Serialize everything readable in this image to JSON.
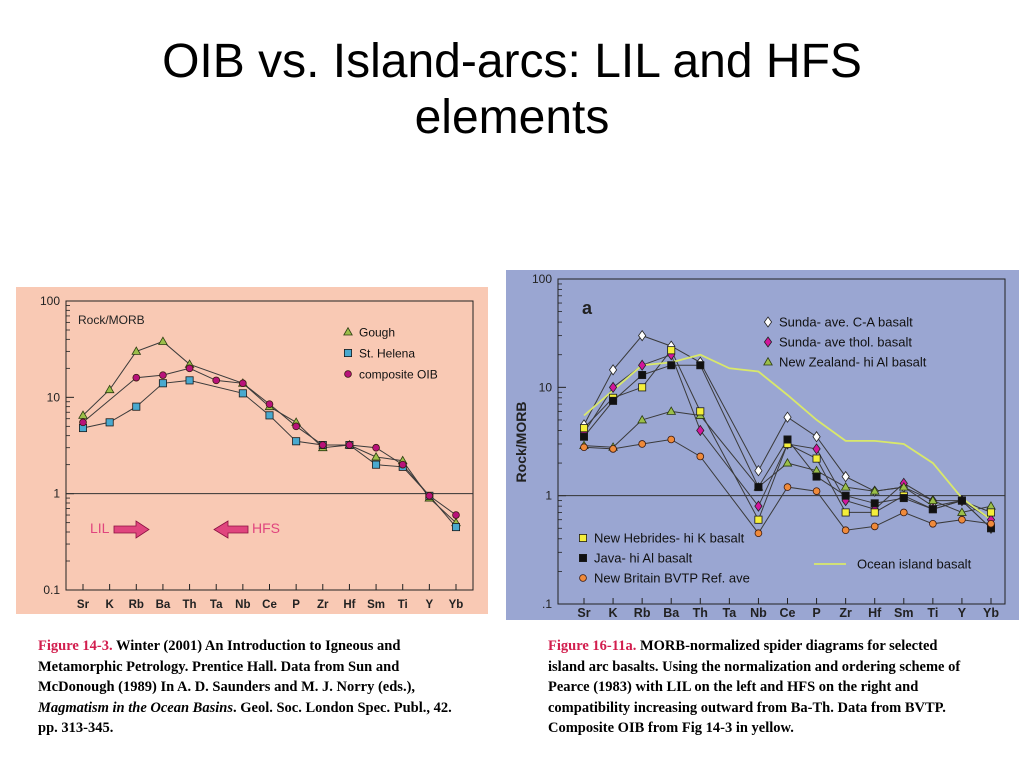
{
  "slide": {
    "title_line1": "OIB vs. Island-arcs: LIL and HFS",
    "title_line2": "elements"
  },
  "colors": {
    "left_bg": "#f9c9b4",
    "right_bg": "#9aa6d2",
    "caption_label": "#d21e4e",
    "gough": "#9bbf4a",
    "st_helena": "#49a9cf",
    "composite_oib": "#b8127a",
    "sunda_ca": "#ffffff",
    "sunda_thol": "#d2169c",
    "new_zealand": "#9bbf4a",
    "new_hebrides": "#f4ee3a",
    "java": "#111111",
    "new_britain": "#f08a3a",
    "ocean_island_line": "#d9e86a",
    "lil_arrow": "#e0457e"
  },
  "captions": {
    "left": {
      "label": "Figure 14-3.",
      "text_a": " Winter (2001) An Introduction to Igneous and Metamorphic Petrology. Prentice Hall. Data from Sun and McDonough (1989) In A. D. Saunders and M. J. Norry (eds.), ",
      "italic": "Magmatism in the Ocean Basins",
      "text_b": ". Geol. Soc. London Spec. Publ., 42. pp. 313-345."
    },
    "right": {
      "label": "Figure 16-11a.",
      "text": " MORB-normalized spider diagrams for selected island arc basalts. Using the normalization and ordering scheme of Pearce (1983) with LIL on the left and HFS on the right and compatibility increasing outward from Ba-Th. Data from BVTP. Composite OIB from Fig 14-3 in yellow."
    }
  },
  "chart_data": [
    {
      "type": "line",
      "ylabel": "Rock/MORB",
      "yscale": "log",
      "ylim": [
        0.1,
        100
      ],
      "y_ticks": [
        "100",
        "10",
        "1",
        "0.1"
      ],
      "categories": [
        "Sr",
        "K",
        "Rb",
        "Ba",
        "Th",
        "Ta",
        "Nb",
        "Ce",
        "P",
        "Zr",
        "Hf",
        "Sm",
        "Ti",
        "Y",
        "Yb"
      ],
      "reference_line": 1,
      "annotations": {
        "lil": "LIL",
        "hfs": "HFS"
      },
      "series": [
        {
          "name": "Gough",
          "marker": "triangle",
          "color_key": "gough",
          "values": [
            6.5,
            12,
            30,
            38,
            22,
            null,
            14,
            8,
            5.5,
            3,
            3.2,
            2.4,
            2.2,
            0.9,
            0.5
          ]
        },
        {
          "name": "St. Helena",
          "marker": "square",
          "color_key": "st_helena",
          "values": [
            4.8,
            5.5,
            8,
            14,
            15,
            null,
            11,
            6.5,
            3.5,
            3.2,
            3.2,
            2,
            1.9,
            0.95,
            0.45
          ]
        },
        {
          "name": "composite OIB",
          "marker": "circle",
          "color_key": "composite_oib",
          "values": [
            5.5,
            null,
            16,
            17,
            20,
            15,
            14,
            8.5,
            5,
            3.2,
            3.2,
            3,
            2,
            0.95,
            0.6
          ]
        }
      ]
    },
    {
      "type": "line",
      "panel_label": "a",
      "ylabel": "Rock/MORB",
      "yscale": "log",
      "ylim": [
        0.1,
        100
      ],
      "y_ticks": [
        "100",
        "10",
        "1",
        ".1"
      ],
      "categories": [
        "Sr",
        "K",
        "Rb",
        "Ba",
        "Th",
        "Ta",
        "Nb",
        "Ce",
        "P",
        "Zr",
        "Hf",
        "Sm",
        "Ti",
        "Y",
        "Yb"
      ],
      "reference_line": 1,
      "series": [
        {
          "name": "Sunda- ave. C-A basalt",
          "marker": "diamond",
          "color_key": "sunda_ca",
          "values": [
            4.5,
            14.5,
            30,
            24,
            17,
            null,
            1.7,
            5.3,
            3.5,
            1.5,
            1.1,
            1.2,
            0.8,
            0.9,
            0.5
          ]
        },
        {
          "name": "Sunda- ave thol. basalt",
          "marker": "diamond",
          "color_key": "sunda_thol",
          "values": [
            3.8,
            10,
            16,
            20,
            4,
            null,
            0.8,
            3,
            2.7,
            0.9,
            0.75,
            1.3,
            0.9,
            0.9,
            0.6
          ]
        },
        {
          "name": "New Zealand- hi Al basalt",
          "marker": "triangle",
          "color_key": "new_zealand",
          "values": [
            2.9,
            2.8,
            5,
            6,
            5.5,
            null,
            1.2,
            2,
            1.7,
            1.2,
            1.1,
            1.2,
            0.9,
            0.7,
            0.8
          ]
        },
        {
          "name": "New Hebrides- hi K basalt",
          "marker": "square",
          "color_key": "new_hebrides",
          "values": [
            4.2,
            8,
            10,
            22,
            6,
            null,
            0.6,
            3,
            2.2,
            0.7,
            0.7,
            1,
            0.75,
            0.9,
            0.7
          ]
        },
        {
          "name": "Java- hi Al basalt",
          "marker": "square",
          "color_key": "java",
          "values": [
            3.5,
            7.5,
            13,
            16,
            16,
            null,
            1.2,
            3.3,
            1.5,
            1,
            0.85,
            0.95,
            0.75,
            0.9,
            0.5
          ]
        },
        {
          "name": "New Britain BVTP Ref. ave",
          "marker": "circle",
          "color_key": "new_britain",
          "values": [
            2.8,
            2.7,
            3,
            3.3,
            2.3,
            null,
            0.45,
            1.2,
            1.1,
            0.48,
            0.52,
            0.7,
            0.55,
            0.6,
            0.55
          ]
        },
        {
          "name": "Ocean island basalt",
          "marker": "none",
          "color_key": "ocean_island_line",
          "values": [
            5.5,
            null,
            16,
            17,
            20,
            15,
            14,
            8.5,
            5,
            3.2,
            3.2,
            3,
            2,
            0.95,
            0.6
          ]
        }
      ]
    }
  ]
}
